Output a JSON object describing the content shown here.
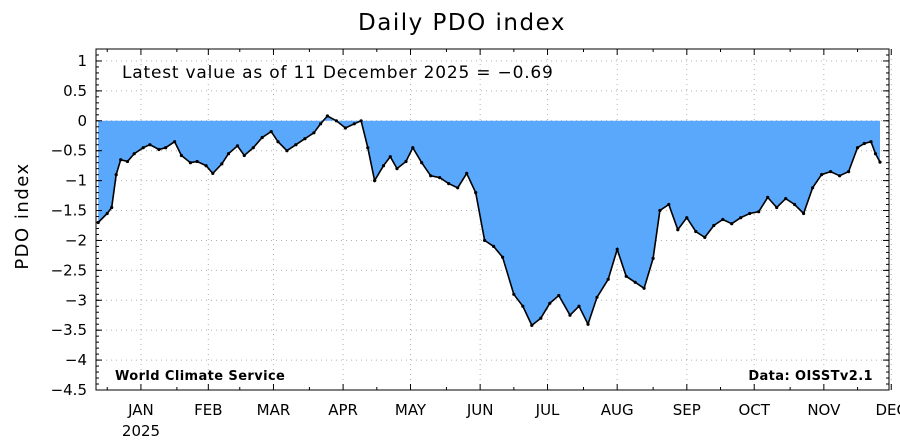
{
  "chart_data": {
    "type": "area",
    "title": "Daily PDO index",
    "ylabel": "PDO index",
    "xlabel": "",
    "ylim": [
      -4.5,
      1.2
    ],
    "yticks": [
      "1",
      "0.5",
      "0",
      "−0.5",
      "−1",
      "−1.5",
      "−2",
      "−2.5",
      "−3",
      "−3.5",
      "−4",
      "−4.5"
    ],
    "ytick_values": [
      1,
      0.5,
      0,
      -0.5,
      -1,
      -1.5,
      -2,
      -2.5,
      -3,
      -3.5,
      -4,
      -4.5
    ],
    "xlim": [
      "2024-12-27",
      "2025-12-15"
    ],
    "xticks": [
      {
        "label": "JAN",
        "date": "2025-01-16"
      },
      {
        "label": "FEB",
        "date": "2025-02-15"
      },
      {
        "label": "MAR",
        "date": "2025-03-16"
      },
      {
        "label": "APR",
        "date": "2025-04-16"
      },
      {
        "label": "MAY",
        "date": "2025-05-16"
      },
      {
        "label": "JUN",
        "date": "2025-06-16"
      },
      {
        "label": "JUL",
        "date": "2025-07-16"
      },
      {
        "label": "AUG",
        "date": "2025-08-16"
      },
      {
        "label": "SEP",
        "date": "2025-09-16"
      },
      {
        "label": "OCT",
        "date": "2025-10-16"
      },
      {
        "label": "NOV",
        "date": "2025-11-16"
      },
      {
        "label": "DEC",
        "date": "2025-12-16"
      }
    ],
    "year_label": "2025",
    "grid": true,
    "fill_color": "#5aa8fc",
    "line_color": "#000000",
    "annotation": "Latest value as of 11 December 2025 = −0.69",
    "credit_left": "World Climate Service",
    "credit_right": "Data: OISSTv2.1",
    "series": [
      {
        "x": [
          "2024-12-28",
          "2025-01-01",
          "2025-01-03",
          "2025-01-05",
          "2025-01-07",
          "2025-01-10",
          "2025-01-13",
          "2025-01-17",
          "2025-01-20",
          "2025-01-24",
          "2025-01-27",
          "2025-01-31",
          "2025-02-03",
          "2025-02-07",
          "2025-02-10",
          "2025-02-14",
          "2025-02-17",
          "2025-02-21",
          "2025-02-24",
          "2025-02-28",
          "2025-03-03",
          "2025-03-07",
          "2025-03-11",
          "2025-03-15",
          "2025-03-18",
          "2025-03-22",
          "2025-03-26",
          "2025-03-30",
          "2025-04-03",
          "2025-04-06",
          "2025-04-09",
          "2025-04-13",
          "2025-04-17",
          "2025-04-21",
          "2025-04-24",
          "2025-04-27",
          "2025-04-30",
          "2025-05-04",
          "2025-05-07",
          "2025-05-10",
          "2025-05-14",
          "2025-05-17",
          "2025-05-21",
          "2025-05-25",
          "2025-05-29",
          "2025-06-02",
          "2025-06-06",
          "2025-06-10",
          "2025-06-14",
          "2025-06-18",
          "2025-06-22",
          "2025-06-26",
          "2025-07-01",
          "2025-07-05",
          "2025-07-09",
          "2025-07-13",
          "2025-07-17",
          "2025-07-21",
          "2025-07-26",
          "2025-07-30",
          "2025-08-03",
          "2025-08-07",
          "2025-08-12",
          "2025-08-16",
          "2025-08-20",
          "2025-08-24",
          "2025-08-28",
          "2025-09-01",
          "2025-09-04",
          "2025-09-08",
          "2025-09-12",
          "2025-09-16",
          "2025-09-20",
          "2025-09-24",
          "2025-09-28",
          "2025-10-02",
          "2025-10-06",
          "2025-10-10",
          "2025-10-14",
          "2025-10-18",
          "2025-10-22",
          "2025-10-26",
          "2025-10-30",
          "2025-11-03",
          "2025-11-07",
          "2025-11-11",
          "2025-11-15",
          "2025-11-19",
          "2025-11-23",
          "2025-11-27",
          "2025-12-01",
          "2025-12-04",
          "2025-12-07",
          "2025-12-09",
          "2025-12-11"
        ],
        "values": [
          -1.7,
          -1.55,
          -1.45,
          -0.9,
          -0.65,
          -0.68,
          -0.55,
          -0.45,
          -0.4,
          -0.48,
          -0.45,
          -0.35,
          -0.58,
          -0.7,
          -0.68,
          -0.75,
          -0.88,
          -0.72,
          -0.55,
          -0.42,
          -0.58,
          -0.45,
          -0.28,
          -0.18,
          -0.35,
          -0.5,
          -0.4,
          -0.3,
          -0.2,
          -0.05,
          0.08,
          0.0,
          -0.12,
          -0.05,
          0.0,
          -0.45,
          -1.0,
          -0.75,
          -0.6,
          -0.8,
          -0.68,
          -0.45,
          -0.7,
          -0.92,
          -0.95,
          -1.05,
          -1.12,
          -0.88,
          -1.2,
          -2.0,
          -2.1,
          -2.28,
          -2.9,
          -3.1,
          -3.42,
          -3.3,
          -3.05,
          -2.92,
          -3.25,
          -3.1,
          -3.4,
          -2.95,
          -2.65,
          -2.15,
          -2.6,
          -2.7,
          -2.8,
          -2.3,
          -1.5,
          -1.4,
          -1.82,
          -1.62,
          -1.85,
          -1.95,
          -1.75,
          -1.65,
          -1.72,
          -1.62,
          -1.55,
          -1.52,
          -1.28,
          -1.45,
          -1.3,
          -1.4,
          -1.55,
          -1.12,
          -0.9,
          -0.85,
          -0.92,
          -0.85,
          -0.45,
          -0.38,
          -0.35,
          -0.55,
          -0.69
        ]
      }
    ]
  }
}
